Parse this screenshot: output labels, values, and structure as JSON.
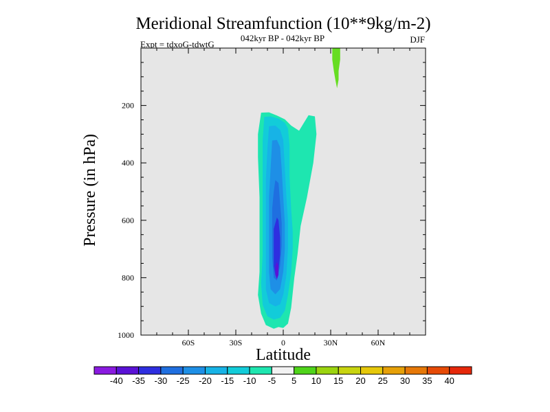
{
  "chart_data": {
    "type": "heatmap",
    "title": "Meridional Streamfunction (10**9kg/m-2)",
    "subtitle": "042kyr BP - 042kyr BP",
    "experiment_label": "Expt = tdxoG-tdwtG",
    "season_label": "DJF",
    "xlabel": "Latitude",
    "ylabel": "Pressure (in hPa)",
    "xlim": [
      -90,
      90
    ],
    "ylim": [
      1000,
      0
    ],
    "x_ticks": [
      {
        "value": -60,
        "label": "60S"
      },
      {
        "value": -30,
        "label": "30S"
      },
      {
        "value": 0,
        "label": "0"
      },
      {
        "value": 30,
        "label": "30N"
      },
      {
        "value": 60,
        "label": "60N"
      }
    ],
    "y_ticks": [
      {
        "value": 200,
        "label": "200"
      },
      {
        "value": 400,
        "label": "400"
      },
      {
        "value": 600,
        "label": "600"
      },
      {
        "value": 800,
        "label": "800"
      },
      {
        "value": 1000,
        "label": "1000"
      }
    ],
    "background_color": "#e6e6e6",
    "contour_levels": [
      -40,
      -35,
      -30,
      -25,
      -20,
      -15,
      -10,
      -5,
      5,
      10,
      15,
      20,
      25,
      30,
      35,
      40
    ],
    "colorbar_labels": [
      "-40",
      "-35",
      "-30",
      "-25",
      "-20",
      "-15",
      "-10",
      "-5",
      "5",
      "10",
      "15",
      "20",
      "25",
      "30",
      "35",
      "40"
    ],
    "colorbar_colors": [
      "#8a1ae0",
      "#5a12d6",
      "#2e2ee0",
      "#1f6fe0",
      "#1e8fe6",
      "#17b3e6",
      "#12ccd9",
      "#1ee6b0",
      "#f2f2f2",
      "#4fd41a",
      "#9bd40f",
      "#c8d40f",
      "#e6c80a",
      "#e6a008",
      "#e67808",
      "#e64a06",
      "#e6280a"
    ],
    "regions": [
      {
        "level": -10,
        "color": "#1ee6b0",
        "outline": [
          [
            -14,
            225
          ],
          [
            -9,
            224
          ],
          [
            -4,
            235
          ],
          [
            1,
            248
          ],
          [
            5,
            270
          ],
          [
            10,
            288
          ],
          [
            16,
            234
          ],
          [
            20,
            238
          ],
          [
            21,
            300
          ],
          [
            19,
            400
          ],
          [
            15,
            520
          ],
          [
            11,
            620
          ],
          [
            9,
            720
          ],
          [
            7,
            800
          ],
          [
            5,
            905
          ],
          [
            3,
            960
          ],
          [
            0,
            975
          ],
          [
            -3,
            972
          ],
          [
            -6,
            978
          ],
          [
            -11,
            965
          ],
          [
            -14,
            925
          ],
          [
            -16,
            860
          ],
          [
            -15,
            780
          ],
          [
            -15,
            520
          ],
          [
            -16,
            380
          ],
          [
            -16,
            300
          ]
        ]
      },
      {
        "level": -15,
        "color": "#12ccd9",
        "outline": [
          [
            -12,
            240
          ],
          [
            -8,
            238
          ],
          [
            -3,
            246
          ],
          [
            1,
            260
          ],
          [
            3,
            280
          ],
          [
            4,
            340
          ],
          [
            4,
            450
          ],
          [
            5,
            560
          ],
          [
            6,
            640
          ],
          [
            6,
            700
          ],
          [
            5,
            780
          ],
          [
            3,
            860
          ],
          [
            1,
            915
          ],
          [
            -2,
            940
          ],
          [
            -6,
            946
          ],
          [
            -10,
            935
          ],
          [
            -13,
            895
          ],
          [
            -14,
            820
          ],
          [
            -13,
            720
          ],
          [
            -13,
            560
          ],
          [
            -13,
            420
          ],
          [
            -13,
            320
          ]
        ]
      },
      {
        "level": -20,
        "color": "#17b3e6",
        "outline": [
          [
            -9,
            272
          ],
          [
            -5,
            270
          ],
          [
            -2,
            285
          ],
          [
            0,
            320
          ],
          [
            1,
            420
          ],
          [
            2,
            520
          ],
          [
            3,
            600
          ],
          [
            3,
            700
          ],
          [
            2,
            790
          ],
          [
            0,
            860
          ],
          [
            -2,
            893
          ],
          [
            -5,
            900
          ],
          [
            -9,
            888
          ],
          [
            -11,
            840
          ],
          [
            -11,
            750
          ],
          [
            -11,
            600
          ],
          [
            -11,
            460
          ],
          [
            -10,
            350
          ]
        ]
      },
      {
        "level": -25,
        "color": "#1e8fe6",
        "outline": [
          [
            -7,
            322
          ],
          [
            -4,
            320
          ],
          [
            -2,
            345
          ],
          [
            -1,
            420
          ],
          [
            0,
            520
          ],
          [
            1,
            610
          ],
          [
            1,
            700
          ],
          [
            0,
            780
          ],
          [
            -2,
            840
          ],
          [
            -5,
            858
          ],
          [
            -8,
            840
          ],
          [
            -9,
            780
          ],
          [
            -9,
            660
          ],
          [
            -9,
            520
          ],
          [
            -8,
            420
          ]
        ]
      },
      {
        "level": -30,
        "color": "#1f6fe0",
        "outline": [
          [
            -5,
            460
          ],
          [
            -3,
            470
          ],
          [
            -2,
            540
          ],
          [
            -1,
            610
          ],
          [
            -1,
            690
          ],
          [
            -2,
            760
          ],
          [
            -4,
            810
          ],
          [
            -6,
            800
          ],
          [
            -7,
            730
          ],
          [
            -7,
            640
          ],
          [
            -7,
            560
          ],
          [
            -6,
            500
          ]
        ]
      },
      {
        "level": -35,
        "color": "#2e2ee0",
        "outline": [
          [
            -4,
            590
          ],
          [
            -3,
            600
          ],
          [
            -2,
            660
          ],
          [
            -2,
            720
          ],
          [
            -3,
            775
          ],
          [
            -5,
            790
          ],
          [
            -6,
            760
          ],
          [
            -6,
            690
          ],
          [
            -6,
            630
          ]
        ]
      },
      {
        "level": -40,
        "color": "#5a12d6",
        "outline": [
          [
            -4,
            745
          ],
          [
            -3,
            760
          ],
          [
            -3,
            790
          ],
          [
            -4,
            805
          ],
          [
            -5,
            790
          ],
          [
            -5,
            760
          ]
        ]
      },
      {
        "level": 5,
        "color": "#66dd22",
        "outline": [
          [
            31,
            0
          ],
          [
            36,
            0
          ],
          [
            36,
            40
          ],
          [
            35,
            80
          ],
          [
            35,
            110
          ],
          [
            34,
            140
          ],
          [
            33,
            112
          ],
          [
            32,
            80
          ],
          [
            31,
            40
          ]
        ]
      }
    ]
  }
}
